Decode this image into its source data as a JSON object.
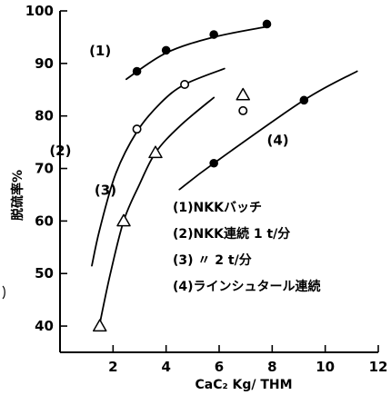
{
  "chart_data": {
    "type": "scatter",
    "xlabel": "CaC₂ Kg/ THM",
    "ylabel": "脱硫率%",
    "xlim": [
      0,
      12
    ],
    "ylim": [
      35,
      100
    ],
    "x_ticks": [
      2,
      4,
      6,
      8,
      10,
      12
    ],
    "y_ticks": [
      40,
      50,
      60,
      70,
      80,
      90,
      100
    ],
    "grid": false,
    "legend_placement": "bottom-right",
    "legend_entries": [
      "(1)NKKバッチ",
      "(2)NKK連続 1 t/分",
      "(3)    〃      2 t/分",
      "(4)ラインシュタール連続"
    ],
    "series": [
      {
        "name": "(1)",
        "marker": "filled-circle",
        "points": [
          {
            "x": 2.9,
            "y": 88.5
          },
          {
            "x": 4.0,
            "y": 92.5
          },
          {
            "x": 5.8,
            "y": 95.5
          },
          {
            "x": 7.8,
            "y": 97.5
          }
        ],
        "curve": [
          {
            "x": 2.5,
            "y": 87.0
          },
          {
            "x": 4.0,
            "y": 92.0
          },
          {
            "x": 5.8,
            "y": 95.0
          },
          {
            "x": 7.8,
            "y": 97.0
          }
        ]
      },
      {
        "name": "(2)",
        "marker": "open-circle",
        "points": [
          {
            "x": 2.9,
            "y": 77.5
          },
          {
            "x": 4.7,
            "y": 86.0
          }
        ],
        "curve": [
          {
            "x": 1.2,
            "y": 51.5
          },
          {
            "x": 1.5,
            "y": 58.5
          },
          {
            "x": 2.1,
            "y": 69.0
          },
          {
            "x": 2.9,
            "y": 77.0
          },
          {
            "x": 3.8,
            "y": 82.5
          },
          {
            "x": 4.7,
            "y": 86.0
          },
          {
            "x": 6.2,
            "y": 89.0
          }
        ]
      },
      {
        "name": "(3)",
        "marker": "open-triangle",
        "points": [
          {
            "x": 1.5,
            "y": 40.0
          },
          {
            "x": 2.4,
            "y": 60.0
          },
          {
            "x": 3.6,
            "y": 73.0
          }
        ],
        "curve": [
          {
            "x": 1.5,
            "y": 40.5
          },
          {
            "x": 1.9,
            "y": 50.0
          },
          {
            "x": 2.4,
            "y": 60.0
          },
          {
            "x": 3.0,
            "y": 67.0
          },
          {
            "x": 3.6,
            "y": 73.0
          },
          {
            "x": 4.5,
            "y": 78.0
          },
          {
            "x": 5.8,
            "y": 83.5
          }
        ]
      },
      {
        "name": "(4)",
        "marker": "filled-circle",
        "points": [
          {
            "x": 5.8,
            "y": 71.0
          },
          {
            "x": 9.2,
            "y": 83.0
          }
        ],
        "curve": [
          {
            "x": 4.5,
            "y": 66.0
          },
          {
            "x": 5.8,
            "y": 71.0
          },
          {
            "x": 9.2,
            "y": 83.0
          },
          {
            "x": 11.2,
            "y": 88.5
          }
        ]
      }
    ],
    "extra_markers": [
      {
        "marker": "open-triangle",
        "x": 6.9,
        "y": 84.0
      },
      {
        "marker": "open-circle",
        "x": 6.9,
        "y": 81.0
      }
    ],
    "series_labels": [
      {
        "text": "(1)",
        "x": 1.1,
        "y": 91.5
      },
      {
        "text": "(2)",
        "x": -0.4,
        "y": 72.5
      },
      {
        "text": "(3)",
        "x": 1.3,
        "y": 65.0
      },
      {
        "text": "(4)",
        "x": 7.8,
        "y": 74.5
      }
    ]
  }
}
